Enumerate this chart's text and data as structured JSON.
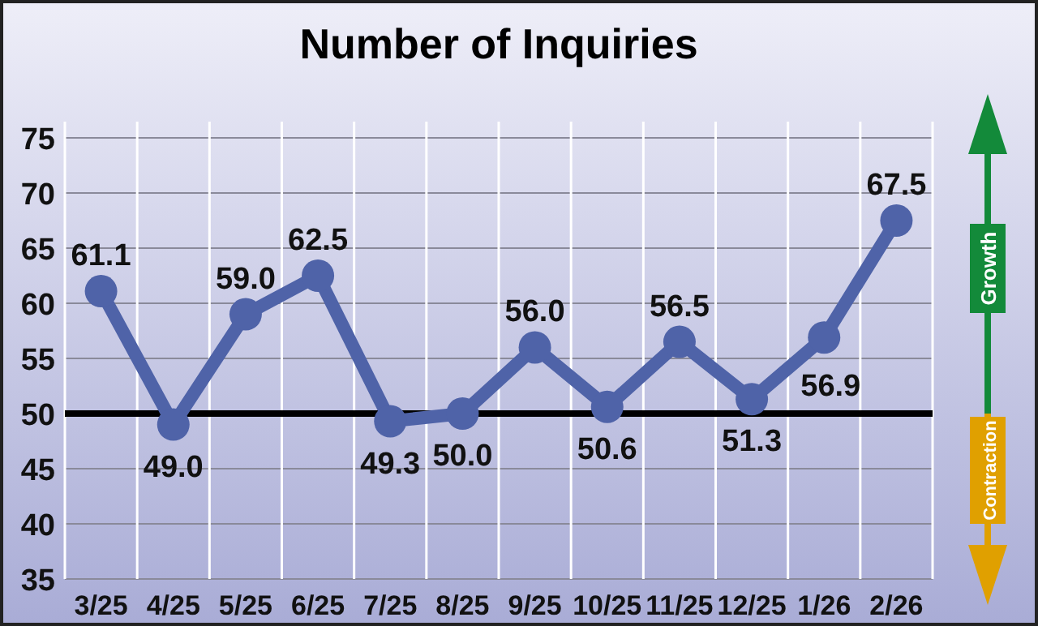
{
  "chart_data": {
    "type": "line",
    "title": "Number of Inquiries",
    "categories": [
      "3/25",
      "4/25",
      "5/25",
      "6/25",
      "7/25",
      "8/25",
      "9/25",
      "10/25",
      "11/25",
      "12/25",
      "1/26",
      "2/26"
    ],
    "series": [
      {
        "color": "#4f63a8",
        "values": [
          61.1,
          49.0,
          59.0,
          62.5,
          49.3,
          50.0,
          56.0,
          50.6,
          56.5,
          51.3,
          56.9,
          67.5
        ],
        "value_labels": [
          "61.1",
          "49.0",
          "59.0",
          "62.5",
          "49.3",
          "50.0",
          "56.0",
          "50.6",
          "56.5",
          "51.3",
          "56.9",
          "67.5"
        ]
      }
    ],
    "ylim": [
      35,
      75
    ],
    "yticks": [
      35,
      40,
      45,
      50,
      55,
      60,
      65,
      70,
      75
    ],
    "grid": true,
    "marker": "circle",
    "line_style": "solid",
    "ref_lines": [
      {
        "axis": "y",
        "value": 50,
        "color": "#000000"
      }
    ],
    "annotations": [
      "Growth",
      "Contraction"
    ]
  }
}
